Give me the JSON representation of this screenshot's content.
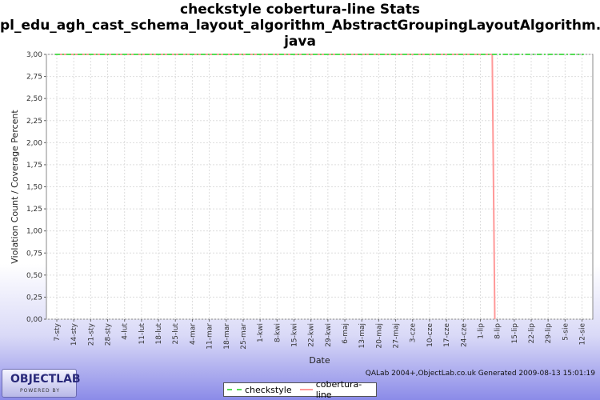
{
  "title_lines": [
    "checkstyle cobertura-line  Stats",
    "pl_edu_agh_cast_schema_layout_algorithm_AbstractGroupingLayoutAlgorithm.",
    "java"
  ],
  "footer_note": "QALab 2004+,ObjectLab.co.uk Generated 2009-08-13 15:01:19",
  "logo": {
    "text": "OBJECTLAB",
    "sub": "POWERED BY"
  },
  "colors": {
    "checkstyle": "#55dd55",
    "cobertura_line": "#ff9999",
    "grid": "#dddddd"
  },
  "chart_data": {
    "type": "line",
    "xlabel": "Date",
    "ylabel": "Violation Count / Coverage Percent",
    "ylim": [
      0,
      3
    ],
    "y_ticks": [
      "0,00",
      "0,25",
      "0,50",
      "0,75",
      "1,00",
      "1,25",
      "1,50",
      "1,75",
      "2,00",
      "2,25",
      "2,50",
      "2,75",
      "3,00"
    ],
    "categories": [
      "7-sty",
      "14-sty",
      "21-sty",
      "28-sty",
      "4-lut",
      "11-lut",
      "18-lut",
      "25-lut",
      "4-mar",
      "11-mar",
      "18-mar",
      "25-mar",
      "1-kwi",
      "8-kwi",
      "15-kwi",
      "22-kwi",
      "29-kwi",
      "6-maj",
      "13-maj",
      "20-maj",
      "27-maj",
      "3-cze",
      "10-cze",
      "17-cze",
      "24-cze",
      "1-lip",
      "8-lip",
      "15-lip",
      "22-lip",
      "29-lip",
      "5-sie",
      "12-sie"
    ],
    "grid": true,
    "legend_position": "bottom",
    "series": [
      {
        "name": "checkstyle",
        "style": "dash-dot",
        "points": [
          {
            "x": -0.1,
            "y": 3
          },
          {
            "x": 31.1,
            "y": 3
          }
        ]
      },
      {
        "name": "cobertura-line",
        "style": "solid",
        "points": [
          {
            "x": -0.1,
            "y": 3
          },
          {
            "x": 25.7,
            "y": 3
          },
          {
            "x": 25.85,
            "y": 0
          }
        ]
      }
    ]
  }
}
